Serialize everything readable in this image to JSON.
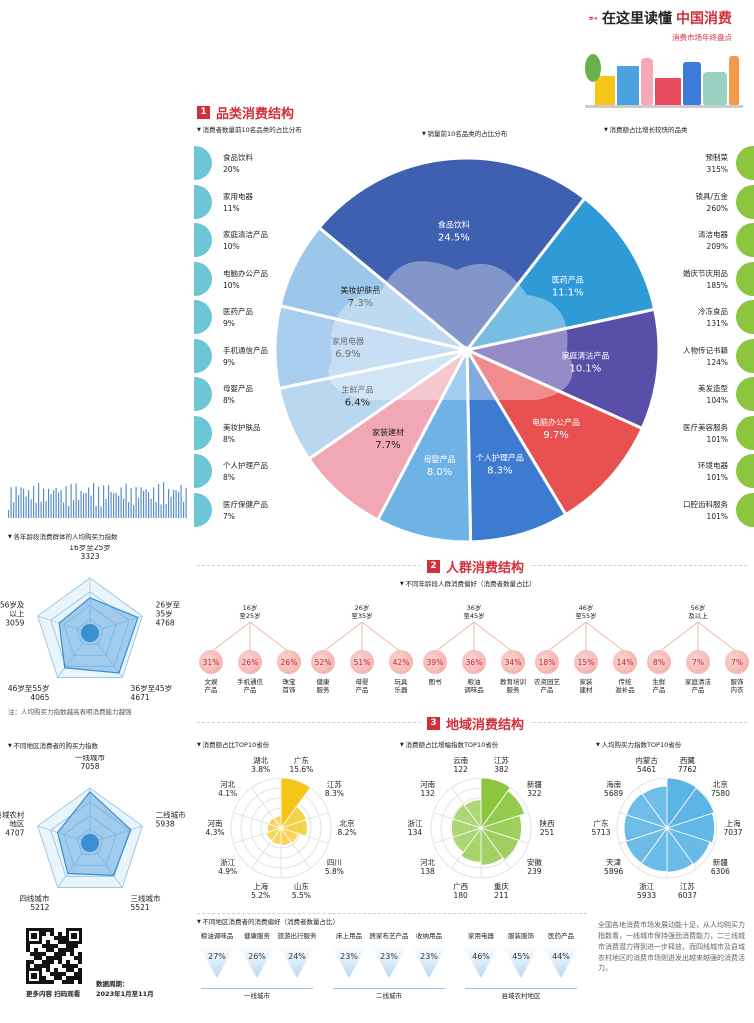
{
  "header": {
    "title_prefix": "在这里读懂",
    "title_highlight": "中国消费",
    "subtitle": "消费市场年终盘点"
  },
  "sections": {
    "s1": {
      "num": "1",
      "title": "品类消费结构"
    },
    "s2": {
      "num": "2",
      "title": "人群消费结构"
    },
    "s3": {
      "num": "3",
      "title": "地域消费结构"
    }
  },
  "colors": {
    "accent": "#d32f3a",
    "teal": "#6cc6d6",
    "green": "#8cc63f",
    "yellow": "#f5c518",
    "blue": "#5ab4e5",
    "pink": "#f2a6a0"
  },
  "chart_data": [
    {
      "type": "bar",
      "title": "消费者数量前10名品类的占比分布",
      "categories": [
        "食品饮料",
        "家用电器",
        "家庭清洁产品",
        "电脑办公产品",
        "医药产品",
        "手机通信产品",
        "母婴产品",
        "美妆护肤品",
        "个人护理产品",
        "医疗保健产品"
      ],
      "values": [
        "20%",
        "11%",
        "10%",
        "10%",
        "9%",
        "9%",
        "8%",
        "8%",
        "8%",
        "7%"
      ]
    },
    {
      "type": "pie",
      "title": "销量前10名品类的占比分布",
      "slices": [
        {
          "label": "食品饮料",
          "value": 24.5,
          "value_text": "24.5%"
        },
        {
          "label": "医药产品",
          "value": 11.1,
          "value_text": "11.1%"
        },
        {
          "label": "家庭清洁产品",
          "value": 10.1,
          "value_text": "10.1%"
        },
        {
          "label": "电脑办公产品",
          "value": 9.7,
          "value_text": "9.7%"
        },
        {
          "label": "个人护理产品",
          "value": 8.3,
          "value_text": "8.3%"
        },
        {
          "label": "母婴产品",
          "value": 8.0,
          "value_text": "8.0%"
        },
        {
          "label": "家装建材",
          "value": 7.7,
          "value_text": "7.7%"
        },
        {
          "label": "美妆护肤品",
          "value": 7.3,
          "value_text": "7.3%"
        },
        {
          "label": "家用电器",
          "value": 6.9,
          "value_text": "6.9%"
        },
        {
          "label": "生鲜产品",
          "value": 6.4,
          "value_text": "6.4%"
        }
      ]
    },
    {
      "type": "bar",
      "title": "消费额占比增长较快的品类",
      "categories": [
        "预制菜",
        "锁具/五金",
        "清洁电器",
        "婚庆节庆用品",
        "冷冻食品",
        "人物传记书籍",
        "美发造型",
        "医疗美容服务",
        "环境电器",
        "口腔齿科服务"
      ],
      "values": [
        "315%",
        "260%",
        "209%",
        "185%",
        "131%",
        "124%",
        "104%",
        "101%",
        "101%",
        "101%"
      ]
    },
    {
      "type": "radar",
      "title": "各年龄段消费群体的人均购买力指数",
      "axes": [
        "16岁至25岁",
        "26岁至35岁",
        "36岁至45岁",
        "46岁至55岁",
        "56岁及以上"
      ],
      "values": [
        3323,
        4768,
        4671,
        4065,
        3059
      ]
    },
    {
      "type": "radar",
      "title": "不同地区消费者的购买力指数",
      "axes": [
        "一线城市",
        "二线城市",
        "三线城市",
        "四线城市",
        "县域农村地区"
      ],
      "values": [
        7058,
        5938,
        5521,
        5212,
        4707
      ]
    },
    {
      "type": "polar",
      "title": "消费额占比TOP10省份",
      "categories": [
        "广东",
        "江苏",
        "北京",
        "四川",
        "山东",
        "上海",
        "浙江",
        "河南",
        "河北",
        "湖北"
      ],
      "values": [
        "15.6%",
        "8.3%",
        "8.2%",
        "5.8%",
        "5.5%",
        "5.2%",
        "4.9%",
        "4.3%",
        "4.1%",
        "3.8%"
      ],
      "numeric": [
        15.6,
        8.3,
        8.2,
        5.8,
        5.5,
        5.2,
        4.9,
        4.3,
        4.1,
        3.8
      ]
    },
    {
      "type": "polar",
      "title": "消费额占比增幅指数TOP10省份",
      "categories": [
        "江苏",
        "新疆",
        "陕西",
        "安徽",
        "重庆",
        "广西",
        "河北",
        "浙江",
        "河南",
        "云南"
      ],
      "values": [
        "382",
        "322",
        "251",
        "239",
        "211",
        "180",
        "138",
        "134",
        "132",
        "122"
      ],
      "numeric": [
        382,
        322,
        251,
        239,
        211,
        180,
        138,
        134,
        132,
        122
      ]
    },
    {
      "type": "polar",
      "title": "人均购买力指数TOP10省份",
      "categories": [
        "西藏",
        "北京",
        "上海",
        "新疆",
        "江苏",
        "浙江",
        "天津",
        "广东",
        "海南",
        "内蒙古"
      ],
      "values": [
        "7762",
        "7580",
        "7037",
        "6306",
        "6037",
        "5933",
        "5896",
        "5713",
        "5689",
        "5461"
      ],
      "numeric": [
        7762,
        7580,
        7037,
        6306,
        6037,
        5933,
        5896,
        5713,
        5689,
        5461
      ]
    }
  ],
  "s1_labels": {
    "left_title": "消费者数量前10名品类的占比分布",
    "mid_title": "销量前10名品类的占比分布",
    "right_title": "消费额占比增长较快的品类"
  },
  "radar_age": {
    "title": "各年龄段消费群体的人均购买力指数",
    "labels": [
      {
        "name": "16岁至25岁",
        "value": "3323"
      },
      {
        "name": "26岁至\n35岁",
        "value": "4768"
      },
      {
        "name": "36岁至45岁",
        "value": "4671"
      },
      {
        "name": "46岁至55岁",
        "value": "4065"
      },
      {
        "name": "56岁及\n以上",
        "value": "3059"
      }
    ],
    "note": "注：人均购买力指数越高表明消费能力越强"
  },
  "radar_region": {
    "title": "不同地区消费者的购买力指数",
    "labels": [
      {
        "name": "一线城市",
        "value": "7058"
      },
      {
        "name": "二线城市",
        "value": "5938"
      },
      {
        "name": "三线城市",
        "value": "5521"
      },
      {
        "name": "四线城市",
        "value": "5212"
      },
      {
        "name": "县域农村\n地区",
        "value": "4707"
      }
    ]
  },
  "age_prefs": {
    "title": "不同年龄段人群消费偏好（消费者数量占比）",
    "groups": [
      {
        "age": "16岁\n至25岁",
        "items": [
          {
            "pct": "31%",
            "label": "文娱\n产品"
          },
          {
            "pct": "26%",
            "label": "手机通信\n产品"
          },
          {
            "pct": "26%",
            "label": "珠宝\n首饰"
          }
        ]
      },
      {
        "age": "26岁\n至35岁",
        "items": [
          {
            "pct": "52%",
            "label": "健康\n服务"
          },
          {
            "pct": "51%",
            "label": "母婴\n产品"
          },
          {
            "pct": "42%",
            "label": "玩具\n乐器"
          }
        ]
      },
      {
        "age": "36岁\n至45岁",
        "items": [
          {
            "pct": "39%",
            "label": "图书"
          },
          {
            "pct": "36%",
            "label": "粮油\n调味品"
          },
          {
            "pct": "34%",
            "label": "教育培训\n服务"
          }
        ]
      },
      {
        "age": "46岁\n至55岁",
        "items": [
          {
            "pct": "18%",
            "label": "农资园艺\n产品"
          },
          {
            "pct": "15%",
            "label": "家装\n建材"
          },
          {
            "pct": "14%",
            "label": "传统\n滋补品"
          }
        ]
      },
      {
        "age": "56岁\n及以上",
        "items": [
          {
            "pct": "8%",
            "label": "生鲜\n产品"
          },
          {
            "pct": "7%",
            "label": "家庭清洁\n产品"
          },
          {
            "pct": "7%",
            "label": "服饰\n内衣"
          }
        ]
      }
    ]
  },
  "polar_labels": {
    "p1_title": "消费额占比TOP10省份",
    "p2_title": "消费额占比增幅指数TOP10省份",
    "p3_title": "人均购买力指数TOP10省份"
  },
  "region_prefs": {
    "title": "不同地区消费者的消费偏好（消费者数量占比）",
    "groups": [
      {
        "name": "一线城市",
        "items": [
          {
            "label": "粮油调味品",
            "pct": "27%"
          },
          {
            "label": "健康服务",
            "pct": "26%"
          },
          {
            "label": "旅游出行服务",
            "pct": "24%"
          }
        ]
      },
      {
        "name": "二线城市",
        "items": [
          {
            "label": "床上用品",
            "pct": "23%"
          },
          {
            "label": "居家布艺产品",
            "pct": "23%"
          },
          {
            "label": "收纳用品",
            "pct": "23%"
          }
        ]
      },
      {
        "name": "县域农村地区",
        "items": [
          {
            "label": "家用电器",
            "pct": "46%"
          },
          {
            "label": "服装服饰",
            "pct": "45%"
          },
          {
            "label": "医药产品",
            "pct": "44%"
          }
        ]
      }
    ]
  },
  "summary": "全国各地消费市场发展动能十足，从人均购买力指数看，一线城市保持强劲消费能力，二三线城市消费潜力得到进一步释放，而四线城市及县域农村地区的消费市场则迸发出越来越强的消费活力。",
  "footer": {
    "qr_caption": "更多内容 扫码观看",
    "period_label": "数据周期：",
    "period_value": "2023年1月至11月"
  }
}
